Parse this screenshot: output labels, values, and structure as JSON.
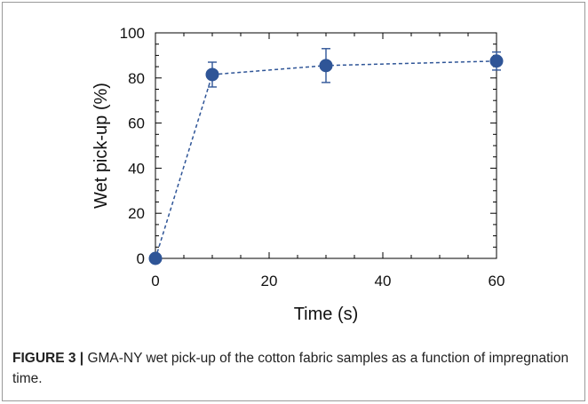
{
  "chart_data": {
    "type": "line",
    "xlabel": "Time (s)",
    "ylabel": "Wet pick-up (%)",
    "xlim": [
      0,
      60
    ],
    "ylim": [
      0,
      100
    ],
    "xticks": [
      0,
      20,
      40,
      60
    ],
    "yticks": [
      0,
      20,
      40,
      60,
      80,
      100
    ],
    "grid": false,
    "series": [
      {
        "x": [
          0,
          10,
          30,
          60
        ],
        "y": [
          0,
          81.5,
          85.5,
          87.5
        ],
        "error": [
          0,
          5.5,
          7.5,
          4.0
        ],
        "color": "#2f5597",
        "line_style": "dashed",
        "marker": "circle"
      }
    ]
  },
  "caption": {
    "label": "FIGURE 3 |",
    "text": " GMA-NY wet pick-up of the cotton fabric samples as a function of impregnation time."
  }
}
